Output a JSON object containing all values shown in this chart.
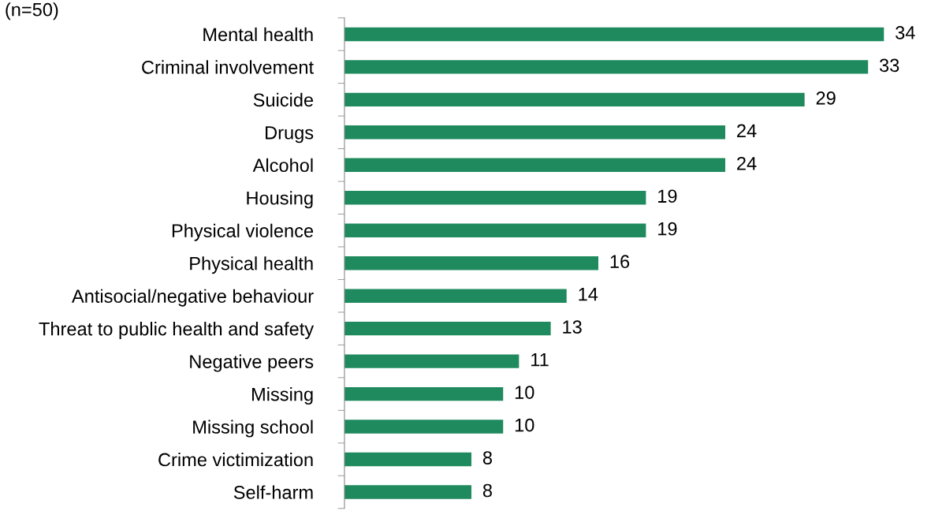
{
  "chart_data": {
    "type": "bar",
    "orientation": "horizontal",
    "categories": [
      "Mental health",
      "Criminal involvement",
      "Suicide",
      "Drugs",
      "Alcohol",
      "Housing",
      "Physical violence",
      "Physical health",
      "Antisocial/negative behaviour",
      "Threat to public health and safety",
      "Negative peers",
      "Missing",
      "Missing school",
      "Crime victimization",
      "Self-harm"
    ],
    "values": [
      34,
      33,
      29,
      24,
      24,
      19,
      19,
      16,
      14,
      13,
      11,
      10,
      10,
      8,
      8
    ],
    "color": "#1e8a5e",
    "data_labels": true,
    "grid": false,
    "legend": false,
    "tick_labels": "y",
    "annotations": [
      "(n=50)"
    ]
  }
}
